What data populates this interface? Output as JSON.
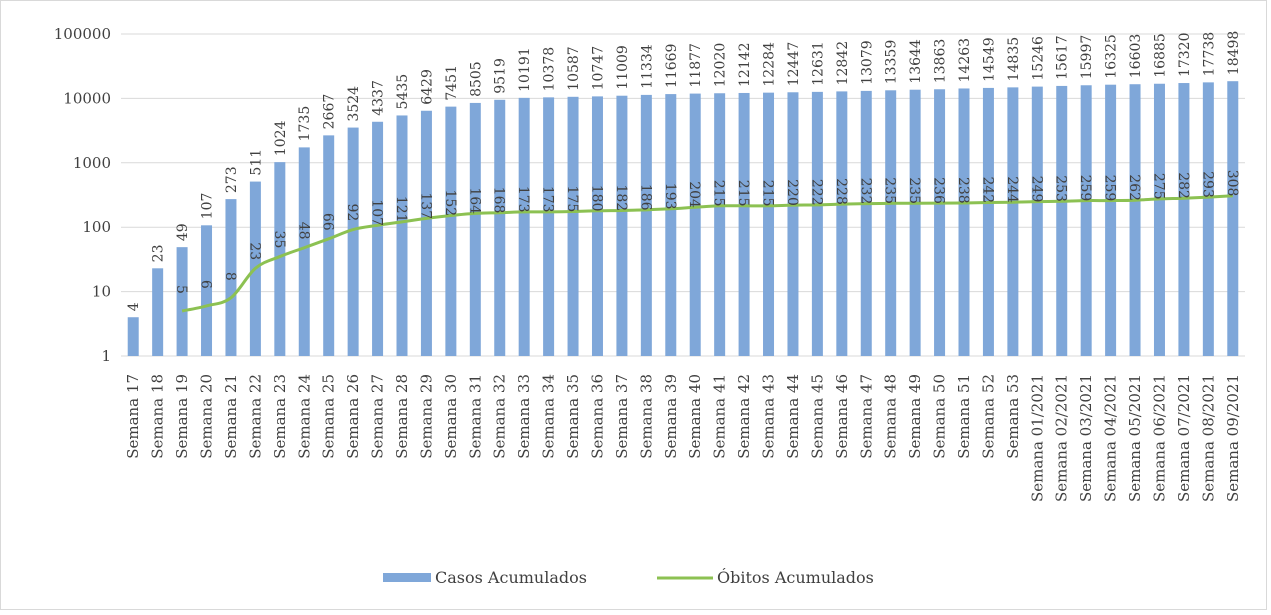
{
  "chart_data": {
    "type": "bar",
    "scale": "log",
    "ylim": [
      1,
      100000
    ],
    "y_ticks": [
      "1",
      "10",
      "100",
      "1000",
      "10000",
      "100000"
    ],
    "grid": true,
    "legend_position": "bottom",
    "categories": [
      "Semana 17",
      "Semana 18",
      "Semana 19",
      "Semana 20",
      "Semana 21",
      "Semana 22",
      "Semana 23",
      "Semana 24",
      "Semana 25",
      "Semana 26",
      "Semana 27",
      "Semana 28",
      "Semana 29",
      "Semana 30",
      "Semana 31",
      "Semana 32",
      "Semana 33",
      "Semana 34",
      "Semana 35",
      "Semana 36",
      "Semana 37",
      "Semana 38",
      "Semana 39",
      "Semana 40",
      "Semana 41",
      "Semana 42",
      "Semana 43",
      "Semana 44",
      "Semana 45",
      "Semana 46",
      "Semana 47",
      "Semana 48",
      "Semana 49",
      "Semana 50",
      "Semana 51",
      "Semana 52",
      "Semana 53",
      "Semana 01/2021",
      "Semana 02/2021",
      "Semana 03/2021",
      "Semana 04/2021",
      "Semana 05/2021",
      "Semana 06/2021",
      "Semana 07/2021",
      "Semana 08/2021",
      "Semana 09/2021"
    ],
    "series": [
      {
        "name": "Casos Acumulados",
        "type": "bar",
        "color": "#7fa7d9",
        "values": [
          4,
          23,
          49,
          107,
          273,
          511,
          1024,
          1735,
          2667,
          3524,
          4337,
          5435,
          6429,
          7451,
          8505,
          9519,
          10191,
          10378,
          10587,
          10747,
          11009,
          11334,
          11669,
          11877,
          12020,
          12142,
          12284,
          12447,
          12631,
          12842,
          13079,
          13359,
          13644,
          13863,
          14263,
          14549,
          14835,
          15246,
          15617,
          15997,
          16325,
          16603,
          16885,
          17320,
          17738,
          18498
        ]
      },
      {
        "name": "Óbitos Acumulados",
        "type": "line",
        "color": "#8cc152",
        "values": [
          null,
          null,
          5,
          6,
          8,
          23,
          35,
          48,
          66,
          92,
          107,
          121,
          137,
          152,
          164,
          168,
          173,
          173,
          175,
          180,
          182,
          186,
          193,
          204,
          215,
          215,
          215,
          220,
          222,
          228,
          232,
          235,
          235,
          236,
          238,
          242,
          244,
          249,
          253,
          259,
          259,
          262,
          275,
          282,
          293,
          308
        ]
      }
    ]
  }
}
